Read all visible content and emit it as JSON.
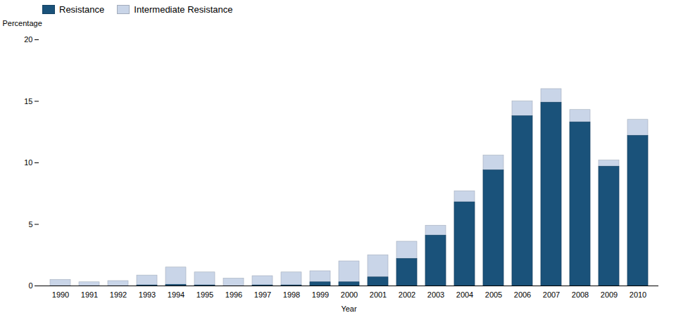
{
  "chart_data": {
    "type": "bar",
    "xlabel": "Year",
    "ylabel": "Percentage",
    "categories": [
      "1990",
      "1991",
      "1992",
      "1993",
      "1994",
      "1995",
      "1996",
      "1997",
      "1998",
      "1999",
      "2000",
      "2001",
      "2002",
      "2003",
      "2004",
      "2005",
      "2006",
      "2007",
      "2008",
      "2009",
      "2010"
    ],
    "series": [
      {
        "name": "Resistance",
        "color": "#1a527a",
        "values": [
          0.0,
          0.0,
          0.0,
          0.05,
          0.1,
          0.05,
          0.0,
          0.05,
          0.05,
          0.3,
          0.3,
          0.7,
          2.2,
          4.1,
          6.8,
          9.4,
          13.8,
          14.9,
          13.3,
          9.7,
          12.2
        ]
      },
      {
        "name": "Intermediate Resistance",
        "color": "#c9d5e8",
        "values": [
          0.5,
          0.3,
          0.4,
          0.85,
          1.5,
          1.1,
          0.6,
          0.8,
          1.1,
          1.2,
          2.0,
          2.5,
          3.6,
          4.9,
          7.7,
          10.6,
          15.0,
          16.0,
          14.3,
          10.2,
          13.5
        ]
      }
    ],
    "ylim": [
      0,
      20
    ],
    "yticks": [
      0,
      5,
      10,
      15,
      20
    ],
    "grid": false,
    "legend": "upper left"
  }
}
